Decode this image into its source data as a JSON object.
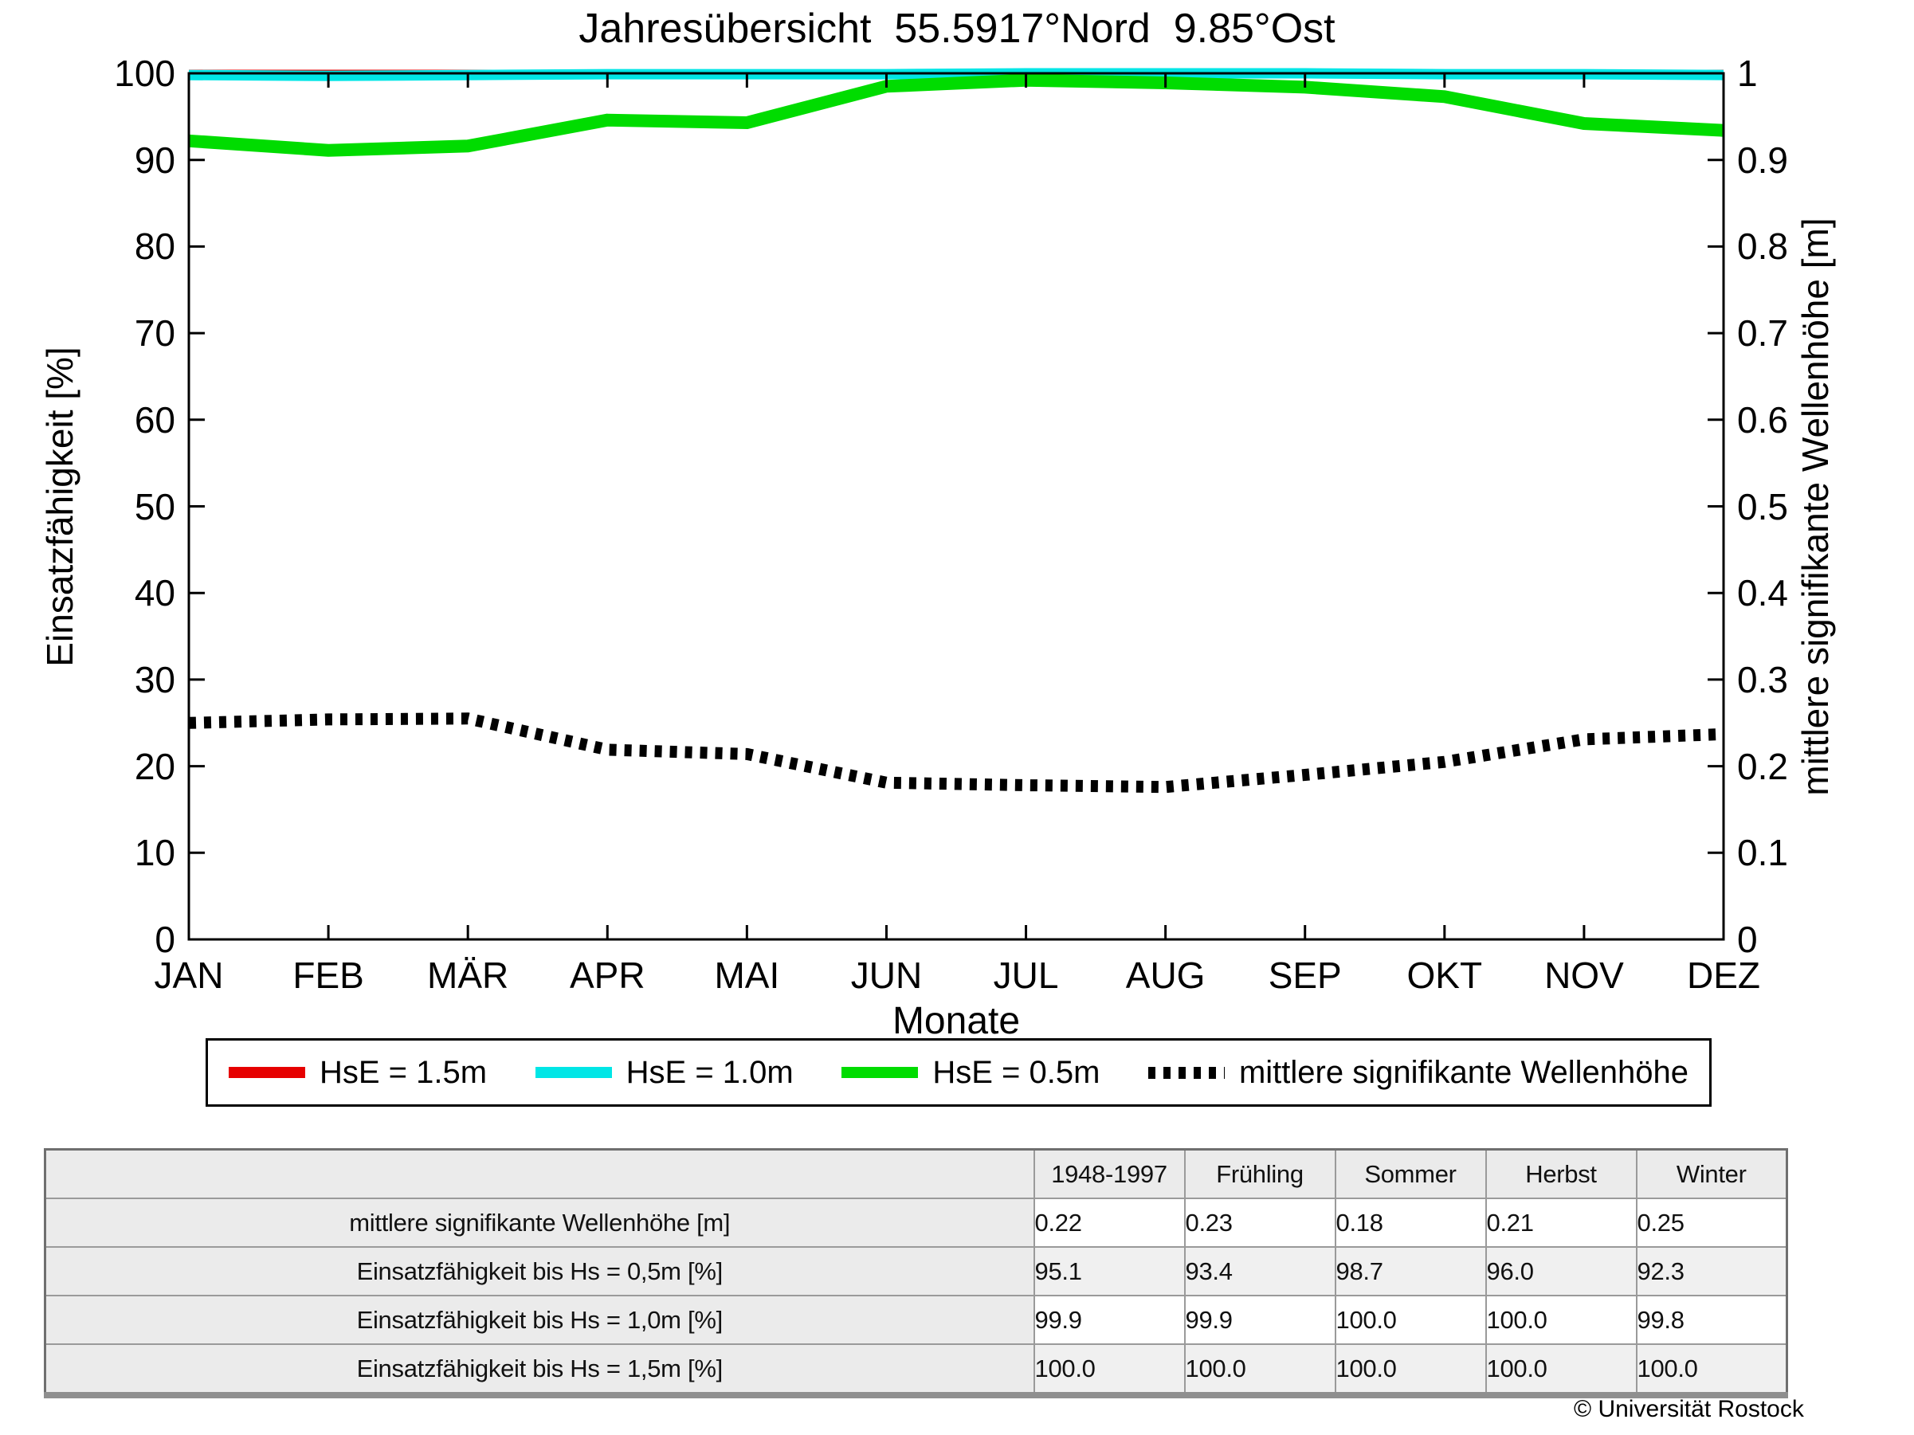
{
  "chart_data": {
    "type": "line",
    "title": "Jahresübersicht  55.5917°Nord  9.85°Ost",
    "xlabel": "Monate",
    "ylabel_left": "Einsatzfähigkeit [%]",
    "ylabel_right": "mittlere signifikante Wellenhöhe [m]",
    "categories": [
      "JAN",
      "FEB",
      "MÄR",
      "APR",
      "MAI",
      "JUN",
      "JUL",
      "AUG",
      "SEP",
      "OKT",
      "NOV",
      "DEZ"
    ],
    "left_axis": {
      "min": 0,
      "max": 100,
      "tick_labels": [
        "100",
        "90",
        "80",
        "70",
        "60",
        "50",
        "40",
        "30",
        "20",
        "10",
        "0"
      ]
    },
    "right_axis": {
      "min": 0,
      "max": 1,
      "tick_labels": [
        "1",
        "0.9",
        "0.8",
        "0.7",
        "0.6",
        "0.5",
        "0.4",
        "0.3",
        "0.2",
        "0.1",
        "0"
      ]
    },
    "grid": "off",
    "legend_position": "bottom",
    "series": [
      {
        "name": "HsE = 1.5m",
        "color": "#e60000",
        "axis": "left",
        "line": "solid",
        "values": [
          100,
          100,
          100,
          100,
          100,
          100,
          100,
          100,
          100,
          100,
          100,
          100
        ]
      },
      {
        "name": "HsE = 1.0m",
        "color": "#00e6e6",
        "axis": "left",
        "line": "solid",
        "values": [
          99.8,
          99.7,
          99.8,
          99.9,
          99.9,
          99.9,
          100,
          100,
          100,
          99.9,
          99.9,
          99.8
        ]
      },
      {
        "name": "HsE = 0.5m",
        "color": "#00dc00",
        "axis": "left",
        "line": "solid",
        "values": [
          92.2,
          91.1,
          91.6,
          94.6,
          94.3,
          98.5,
          99.2,
          98.9,
          98.4,
          97.3,
          94.2,
          93.4
        ]
      },
      {
        "name": "mittlere signifikante Wellenhöhe",
        "color": "#000000",
        "axis": "right",
        "line": "dotted",
        "values": [
          0.25,
          0.254,
          0.255,
          0.219,
          0.214,
          0.181,
          0.178,
          0.176,
          0.19,
          0.205,
          0.231,
          0.237
        ]
      }
    ]
  },
  "table": {
    "header": [
      "1948-1997",
      "Frühling",
      "Sommer",
      "Herbst",
      "Winter"
    ],
    "rows": [
      {
        "label": "mittlere signifikante Wellenhöhe [m]",
        "values": [
          "0.22",
          "0.23",
          "0.18",
          "0.21",
          "0.25"
        ]
      },
      {
        "label": "Einsatzfähigkeit bis Hs = 0,5m [%]",
        "values": [
          "95.1",
          "93.4",
          "98.7",
          "96.0",
          "92.3"
        ]
      },
      {
        "label": "Einsatzfähigkeit bis Hs = 1,0m [%]",
        "values": [
          "99.9",
          "99.9",
          "100.0",
          "100.0",
          "99.8"
        ]
      },
      {
        "label": "Einsatzfähigkeit bis Hs = 1,5m [%]",
        "values": [
          "100.0",
          "100.0",
          "100.0",
          "100.0",
          "100.0"
        ]
      }
    ]
  },
  "footer": {
    "copyright": "© Universität Rostock"
  },
  "colors": {
    "hse_15": "#e60000",
    "hse_10": "#00e6e6",
    "hse_05": "#00dc00",
    "wave": "#000000",
    "table_shade": "#ebebeb"
  }
}
